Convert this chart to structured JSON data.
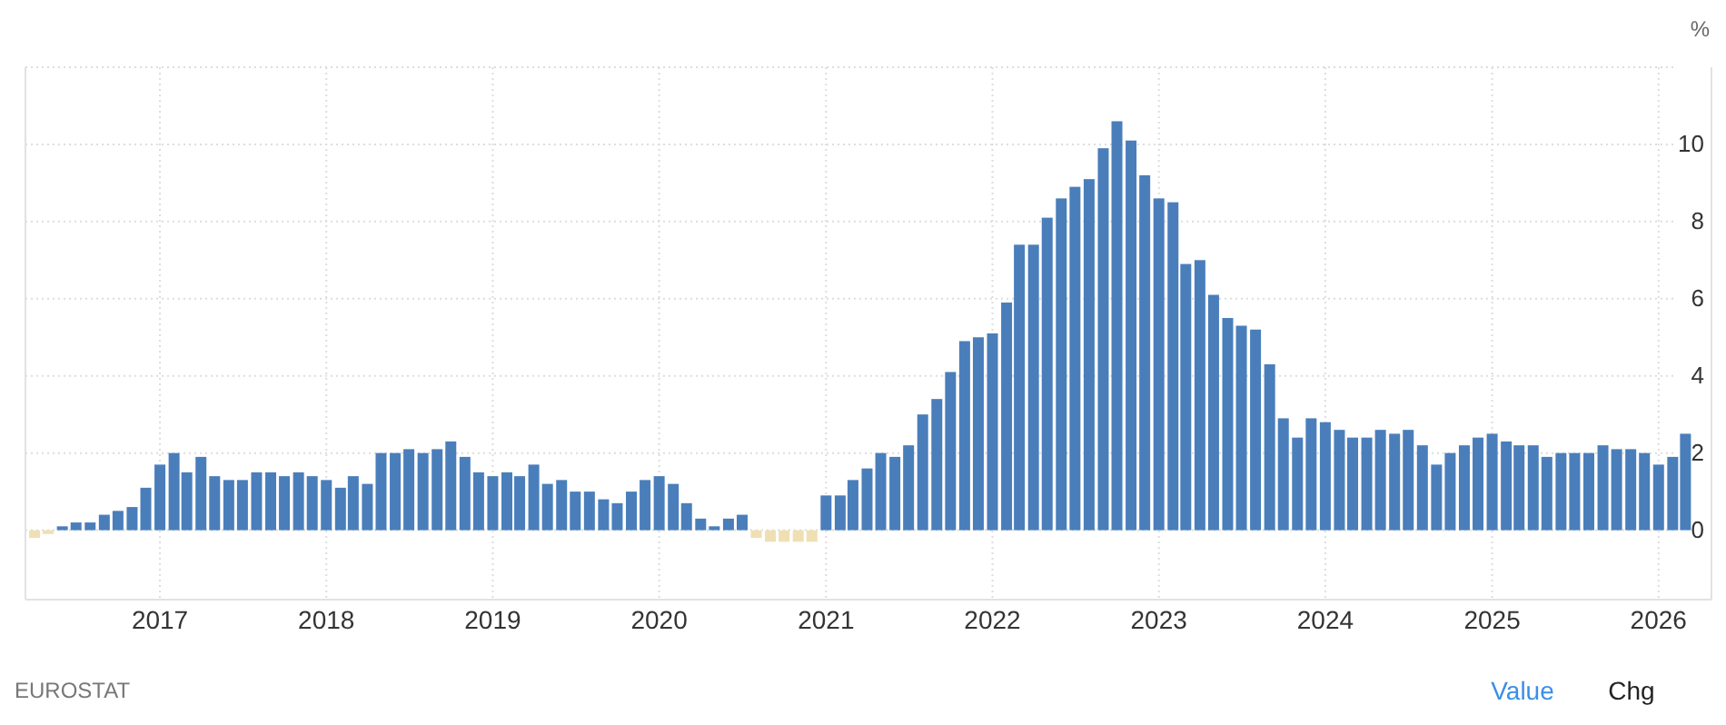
{
  "chart_data": {
    "type": "bar",
    "ylabel": "%",
    "annotations": [
      "EUROSTAT",
      "Value",
      "Chg"
    ],
    "x": [
      "2016-04",
      "2016-05",
      "2016-06",
      "2016-07",
      "2016-08",
      "2016-09",
      "2016-10",
      "2016-11",
      "2016-12",
      "2017-01",
      "2017-02",
      "2017-03",
      "2017-04",
      "2017-05",
      "2017-06",
      "2017-07",
      "2017-08",
      "2017-09",
      "2017-10",
      "2017-11",
      "2017-12",
      "2018-01",
      "2018-02",
      "2018-03",
      "2018-04",
      "2018-05",
      "2018-06",
      "2018-07",
      "2018-08",
      "2018-09",
      "2018-10",
      "2018-11",
      "2018-12",
      "2019-01",
      "2019-02",
      "2019-03",
      "2019-04",
      "2019-05",
      "2019-06",
      "2019-07",
      "2019-08",
      "2019-09",
      "2019-10",
      "2019-11",
      "2019-12",
      "2020-01",
      "2020-02",
      "2020-03",
      "2020-04",
      "2020-05",
      "2020-06",
      "2020-07",
      "2020-08",
      "2020-09",
      "2020-10",
      "2020-11",
      "2020-12",
      "2021-01",
      "2021-02",
      "2021-03",
      "2021-04",
      "2021-05",
      "2021-06",
      "2021-07",
      "2021-08",
      "2021-09",
      "2021-10",
      "2021-11",
      "2021-12",
      "2022-01",
      "2022-02",
      "2022-03",
      "2022-04",
      "2022-05",
      "2022-06",
      "2022-07",
      "2022-08",
      "2022-09",
      "2022-10",
      "2022-11",
      "2022-12",
      "2023-01",
      "2023-02",
      "2023-03",
      "2023-04",
      "2023-05",
      "2023-06",
      "2023-07",
      "2023-08",
      "2023-09",
      "2023-10",
      "2023-11",
      "2023-12",
      "2024-01",
      "2024-02",
      "2024-03",
      "2024-04",
      "2024-05",
      "2024-06",
      "2024-07",
      "2024-08",
      "2024-09",
      "2024-10",
      "2024-11",
      "2024-12",
      "2025-01",
      "2025-02",
      "2025-03",
      "2025-04",
      "2025-05",
      "2025-06",
      "2025-07",
      "2025-08",
      "2025-09",
      "2025-10",
      "2025-11",
      "2025-12",
      "2026-01",
      "2026-02",
      "2026-03"
    ],
    "values": [
      -0.2,
      -0.1,
      0.1,
      0.2,
      0.2,
      0.4,
      0.5,
      0.6,
      1.1,
      1.7,
      2.0,
      1.5,
      1.9,
      1.4,
      1.3,
      1.3,
      1.5,
      1.5,
      1.4,
      1.5,
      1.4,
      1.3,
      1.1,
      1.4,
      1.2,
      2.0,
      2.0,
      2.1,
      2.0,
      2.1,
      2.3,
      1.9,
      1.5,
      1.4,
      1.5,
      1.4,
      1.7,
      1.2,
      1.3,
      1.0,
      1.0,
      0.8,
      0.7,
      1.0,
      1.3,
      1.4,
      1.2,
      0.7,
      0.3,
      0.1,
      0.3,
      0.4,
      -0.2,
      -0.3,
      -0.3,
      -0.3,
      -0.3,
      0.9,
      0.9,
      1.3,
      1.6,
      2.0,
      1.9,
      2.2,
      3.0,
      3.4,
      4.1,
      4.9,
      5.0,
      5.1,
      5.9,
      7.4,
      7.4,
      8.1,
      8.6,
      8.9,
      9.1,
      9.9,
      10.6,
      10.1,
      9.2,
      8.6,
      8.5,
      6.9,
      7.0,
      6.1,
      5.5,
      5.3,
      5.2,
      4.3,
      2.9,
      2.4,
      2.9,
      2.8,
      2.6,
      2.4,
      2.4,
      2.6,
      2.5,
      2.6,
      2.2,
      1.7,
      2.0,
      2.2,
      2.4,
      2.5,
      2.3,
      2.2,
      2.2,
      1.9,
      2.0,
      2.0,
      2.0,
      2.2,
      2.1,
      2.1,
      2.0,
      1.7,
      1.9,
      2.5
    ],
    "colors": [
      "#efdfb3",
      "#efdfb3",
      "#4a7ebb",
      "#4a7ebb",
      "#4a7ebb",
      "#4a7ebb",
      "#4a7ebb",
      "#4a7ebb",
      "#4a7ebb",
      "#4a7ebb",
      "#4a7ebb",
      "#4a7ebb",
      "#4a7ebb",
      "#4a7ebb",
      "#4a7ebb",
      "#4a7ebb",
      "#4a7ebb",
      "#4a7ebb",
      "#4a7ebb",
      "#4a7ebb",
      "#4a7ebb",
      "#4a7ebb",
      "#4a7ebb",
      "#4a7ebb",
      "#4a7ebb",
      "#4a7ebb",
      "#4a7ebb",
      "#4a7ebb",
      "#4a7ebb",
      "#4a7ebb",
      "#4a7ebb",
      "#4a7ebb",
      "#4a7ebb",
      "#4a7ebb",
      "#4a7ebb",
      "#4a7ebb",
      "#4a7ebb",
      "#4a7ebb",
      "#4a7ebb",
      "#4a7ebb",
      "#4a7ebb",
      "#4a7ebb",
      "#4a7ebb",
      "#4a7ebb",
      "#4a7ebb",
      "#4a7ebb",
      "#4a7ebb",
      "#4a7ebb",
      "#4a7ebb",
      "#4a7ebb",
      "#4a7ebb",
      "#4a7ebb",
      "#efdfb3",
      "#efdfb3",
      "#efdfb3",
      "#efdfb3",
      "#efdfb3",
      "#4a7ebb",
      "#4a7ebb",
      "#4a7ebb",
      "#4a7ebb",
      "#4a7ebb",
      "#4a7ebb",
      "#4a7ebb",
      "#4a7ebb",
      "#4a7ebb",
      "#4a7ebb",
      "#4a7ebb",
      "#4a7ebb",
      "#4a7ebb",
      "#4a7ebb",
      "#4a7ebb",
      "#4a7ebb",
      "#4a7ebb",
      "#4a7ebb",
      "#4a7ebb",
      "#4a7ebb",
      "#4a7ebb",
      "#4a7ebb",
      "#4a7ebb",
      "#4a7ebb",
      "#4a7ebb",
      "#4a7ebb",
      "#4a7ebb",
      "#4a7ebb",
      "#4a7ebb",
      "#4a7ebb",
      "#4a7ebb",
      "#4a7ebb",
      "#4a7ebb",
      "#4a7ebb",
      "#4a7ebb",
      "#4a7ebb",
      "#4a7ebb",
      "#4a7ebb",
      "#4a7ebb",
      "#4a7ebb",
      "#4a7ebb",
      "#4a7ebb",
      "#4a7ebb",
      "#4a7ebb",
      "#4a7ebb",
      "#4a7ebb",
      "#4a7ebb",
      "#4a7ebb",
      "#4a7ebb",
      "#4a7ebb",
      "#4a7ebb",
      "#4a7ebb",
      "#4a7ebb",
      "#4a7ebb",
      "#4a7ebb",
      "#4a7ebb",
      "#4a7ebb",
      "#4a7ebb",
      "#4a7ebb",
      "#4a7ebb",
      "#4a7ebb",
      "#4a7ebb",
      "#4a7ebb"
    ],
    "xlim": [
      "2016-03-12",
      "2026-04-27"
    ],
    "xticks": [
      {
        "value": "2017",
        "label": "2017"
      },
      {
        "value": "2018",
        "label": "2018"
      },
      {
        "value": "2019",
        "label": "2019"
      },
      {
        "value": "2020",
        "label": "2020"
      },
      {
        "value": "2021",
        "label": "2021"
      },
      {
        "value": "2022",
        "label": "2022"
      },
      {
        "value": "2023",
        "label": "2023"
      },
      {
        "value": "2024",
        "label": "2024"
      },
      {
        "value": "2025",
        "label": "2025"
      },
      {
        "value": "2026",
        "label": "2026"
      }
    ],
    "ylim": [
      -1.8,
      12
    ],
    "yticks": [
      0,
      2,
      4,
      6,
      8,
      10,
      {
        "value": 12,
        "label": null
      }
    ],
    "grid": true
  }
}
